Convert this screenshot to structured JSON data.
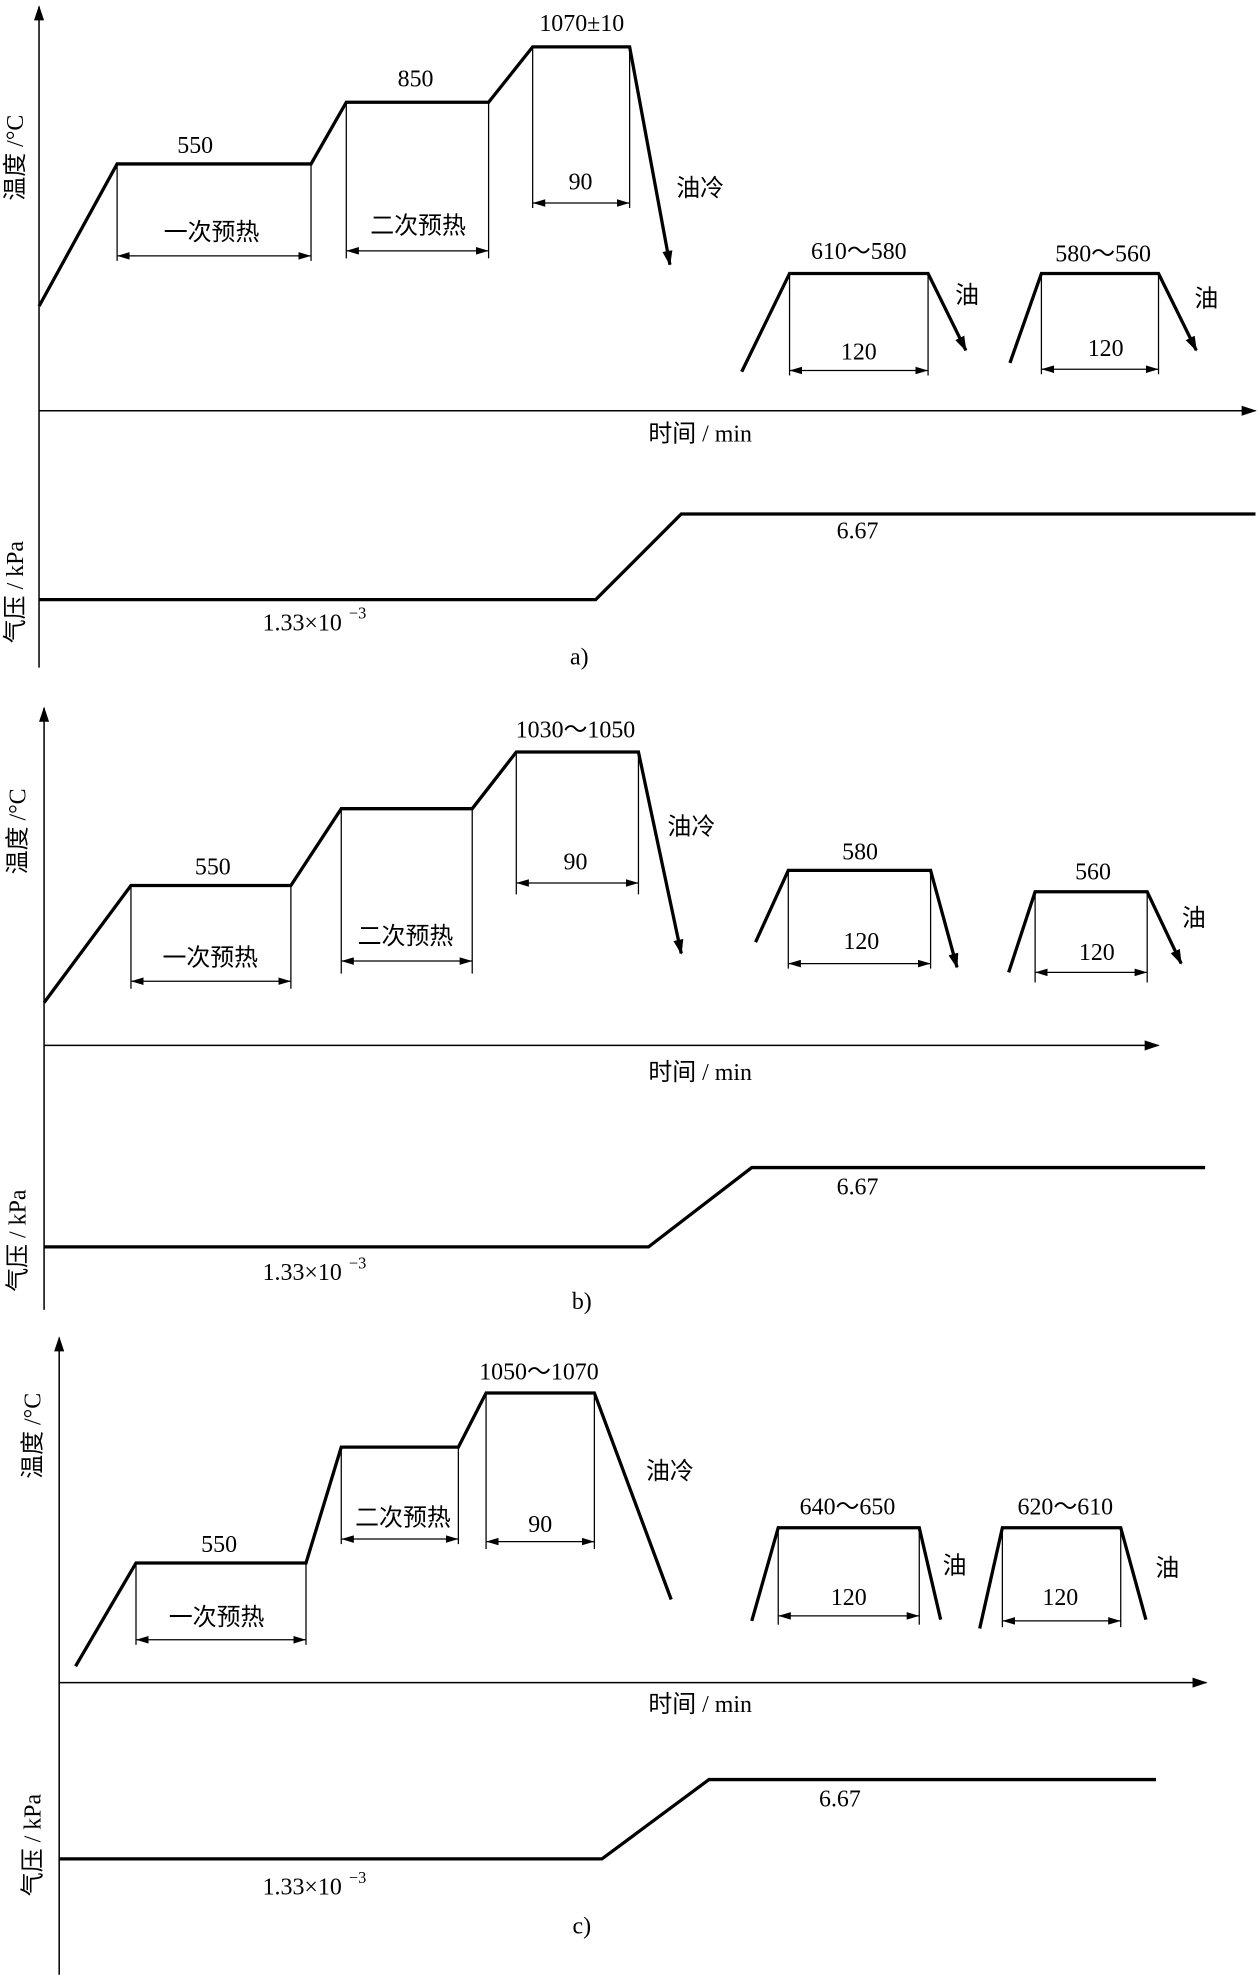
{
  "panels": [
    {
      "caption": "a)",
      "y_axis_temp": "温度 /°C",
      "x_axis": "时间 / min",
      "y_axis_pressure": "气压 / kPa",
      "stages": [
        "550",
        "850",
        "1070±10"
      ],
      "preheat": [
        "一次预热",
        "二次预热"
      ],
      "hold": "90",
      "quench": "油冷",
      "tempers": [
        {
          "temp": "610～580",
          "time": "120",
          "cool": "油"
        },
        {
          "temp": "580～560",
          "time": "120",
          "cool": "油"
        }
      ],
      "pressure_low": "1.33×10",
      "pressure_exp": "−3",
      "pressure_high": "6.67"
    },
    {
      "caption": "b)",
      "y_axis_temp": "温度 /°C",
      "x_axis": "时间 / min",
      "y_axis_pressure": "气压 / kPa",
      "stages": [
        "550",
        "1030～1050"
      ],
      "preheat": [
        "一次预热",
        "二次预热"
      ],
      "hold": "90",
      "quench": "油冷",
      "tempers": [
        {
          "temp": "580",
          "time": "120"
        },
        {
          "temp": "560",
          "time": "120",
          "cool": "油"
        }
      ],
      "pressure_low": "1.33×10",
      "pressure_exp": "−3",
      "pressure_high": "6.67"
    },
    {
      "caption": "c)",
      "y_axis_temp": "温度 /°C",
      "x_axis": "时间 / min",
      "y_axis_pressure": "气压 / kPa",
      "stages": [
        "550",
        "1050～1070"
      ],
      "preheat": [
        "一次预热",
        "二次预热"
      ],
      "hold": "90",
      "quench": "油冷",
      "tempers": [
        {
          "temp": "640～650",
          "time": "120",
          "cool": "油"
        },
        {
          "temp": "620～610",
          "time": "120",
          "cool": "油"
        }
      ],
      "pressure_low": "1.33×10",
      "pressure_exp": "−3",
      "pressure_high": "6.67"
    }
  ]
}
